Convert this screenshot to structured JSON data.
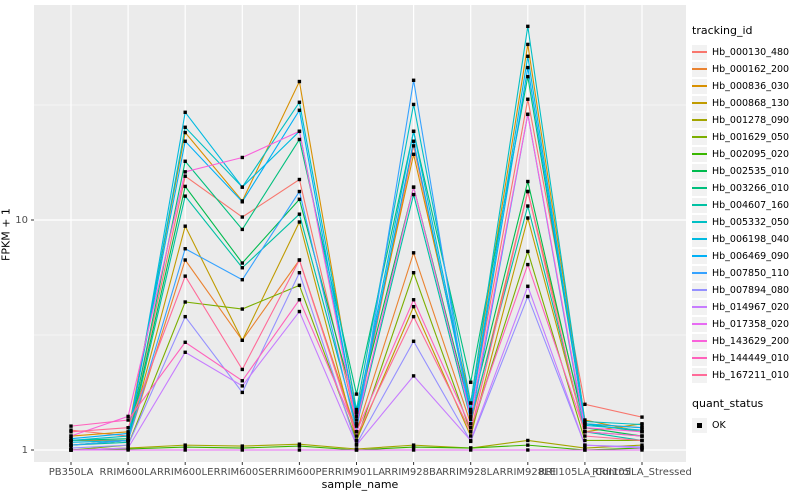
{
  "chart_data": {
    "type": "line",
    "title": "",
    "xlabel": "sample_name",
    "ylabel": "FPKM + 1",
    "y_scale": "log10",
    "ylim": [
      0.93,
      86
    ],
    "y_breaks": [
      1,
      10
    ],
    "y_tick_labels": [
      "1",
      "10"
    ],
    "y_minor_breaks": [
      3.1623,
      31.623
    ],
    "grid": "on",
    "legend_position": "right",
    "point_style": "small filled black square",
    "categories": [
      "PB350LA",
      "RRIM600LA",
      "RRIM600LE",
      "RRIM600SE",
      "RRIM600PE",
      "RRIM901LA",
      "RRIM928BA",
      "RRIM928LA",
      "RRIM928LE",
      "RRII105LA_Control",
      "RRII105LA_Stressed"
    ],
    "series": [
      {
        "name": "Hb_000130_480",
        "color": "#F8766D",
        "values": [
          1.22,
          1.15,
          15.5,
          10.3,
          15.0,
          1.3,
          21.0,
          1.5,
          33.5,
          1.58,
          1.39
        ]
      },
      {
        "name": "Hb_000162_200",
        "color": "#EA8331",
        "values": [
          1.1,
          1.1,
          6.7,
          3.0,
          6.7,
          1.2,
          7.2,
          1.3,
          13.3,
          1.3,
          1.25
        ]
      },
      {
        "name": "Hb_000836_030",
        "color": "#D89000",
        "values": [
          1.15,
          1.2,
          24.0,
          12.1,
          40.0,
          1.45,
          19.3,
          1.6,
          58.0,
          1.35,
          1.2
        ]
      },
      {
        "name": "Hb_000868_130",
        "color": "#C09B00",
        "values": [
          1.05,
          1.1,
          9.4,
          3.0,
          9.8,
          1.1,
          4.2,
          1.15,
          10.2,
          1.2,
          1.3
        ]
      },
      {
        "name": "Hb_001278_090",
        "color": "#A3A500",
        "values": [
          1.0,
          1.02,
          1.05,
          1.04,
          1.06,
          1.01,
          1.05,
          1.02,
          1.1,
          1.02,
          1.05
        ]
      },
      {
        "name": "Hb_001629_050",
        "color": "#7CAE00",
        "values": [
          1.0,
          1.05,
          4.4,
          4.1,
          5.2,
          1.1,
          5.9,
          1.2,
          7.3,
          1.1,
          1.1
        ]
      },
      {
        "name": "Hb_002095_020",
        "color": "#39B600",
        "values": [
          1.0,
          1.01,
          1.03,
          1.02,
          1.04,
          1.0,
          1.03,
          1.02,
          1.05,
          1.0,
          1.02
        ]
      },
      {
        "name": "Hb_002535_010",
        "color": "#00BB4E",
        "values": [
          1.05,
          1.1,
          14.0,
          6.5,
          12.3,
          1.46,
          13.9,
          1.47,
          14.7,
          1.25,
          1.15
        ]
      },
      {
        "name": "Hb_003266_010",
        "color": "#00BF7D",
        "values": [
          1.1,
          1.12,
          18.0,
          9.1,
          22.4,
          1.75,
          24.3,
          1.97,
          42.0,
          1.3,
          1.2
        ]
      },
      {
        "name": "Hb_004607_160",
        "color": "#00C1A3",
        "values": [
          1.05,
          1.08,
          12.7,
          6.2,
          10.6,
          1.27,
          12.9,
          1.36,
          11.5,
          1.2,
          1.1
        ]
      },
      {
        "name": "Hb_005332_050",
        "color": "#00BFC4",
        "values": [
          1.1,
          1.15,
          25.3,
          13.9,
          32.5,
          1.5,
          31.8,
          1.6,
          69.5,
          1.33,
          1.29
        ]
      },
      {
        "name": "Hb_006198_040",
        "color": "#00BAE0",
        "values": [
          1.08,
          1.1,
          29.4,
          13.9,
          24.3,
          1.4,
          24.3,
          1.5,
          51.5,
          1.28,
          1.22
        ]
      },
      {
        "name": "Hb_006469_090",
        "color": "#00B0F6",
        "values": [
          1.12,
          1.18,
          22.0,
          12.0,
          30.0,
          1.35,
          22.0,
          1.45,
          46.0,
          1.3,
          1.25
        ]
      },
      {
        "name": "Hb_007850_110",
        "color": "#35A2FF",
        "values": [
          1.05,
          1.1,
          7.5,
          5.5,
          13.3,
          1.2,
          40.5,
          1.3,
          28.8,
          1.2,
          1.15
        ]
      },
      {
        "name": "Hb_007894_080",
        "color": "#9590FF",
        "values": [
          1.02,
          1.05,
          3.8,
          1.78,
          5.9,
          1.06,
          2.97,
          1.09,
          4.65,
          1.05,
          1.03
        ]
      },
      {
        "name": "Hb_014967_020",
        "color": "#C77CFF",
        "values": [
          1.0,
          1.02,
          2.66,
          1.9,
          4.0,
          1.05,
          2.1,
          1.1,
          5.15,
          1.05,
          1.02
        ]
      },
      {
        "name": "Hb_017358_020",
        "color": "#E76BF3",
        "values": [
          1.0,
          1.0,
          1.0,
          1.0,
          1.0,
          1.0,
          1.0,
          1.0,
          1.0,
          1.0,
          1.0
        ]
      },
      {
        "name": "Hb_143629_200",
        "color": "#FA62DB",
        "values": [
          1.15,
          1.4,
          16.2,
          18.7,
          24.3,
          1.3,
          13.9,
          1.4,
          28.8,
          1.25,
          1.2
        ]
      },
      {
        "name": "Hb_144449_010",
        "color": "#FF62BC",
        "values": [
          1.27,
          1.35,
          2.94,
          2.0,
          4.5,
          1.2,
          4.5,
          1.25,
          6.4,
          1.2,
          1.15
        ]
      },
      {
        "name": "Hb_167211_010",
        "color": "#FF6A98",
        "values": [
          1.2,
          1.25,
          5.7,
          2.24,
          6.7,
          1.15,
          3.8,
          1.2,
          13.3,
          1.15,
          1.1
        ]
      }
    ]
  },
  "legend": {
    "tracking_title": "tracking_id",
    "quant_title": "quant_status",
    "quant_items": [
      {
        "label": "OK"
      }
    ]
  },
  "colors": {
    "panel_bg": "#EBEBEB",
    "grid": "#FFFFFF",
    "tick_mark": "#333333",
    "tick_text": "#4D4D4D",
    "title_text": "#000000",
    "legend_key_bg": "#F2F2F2",
    "point": "#000000"
  }
}
